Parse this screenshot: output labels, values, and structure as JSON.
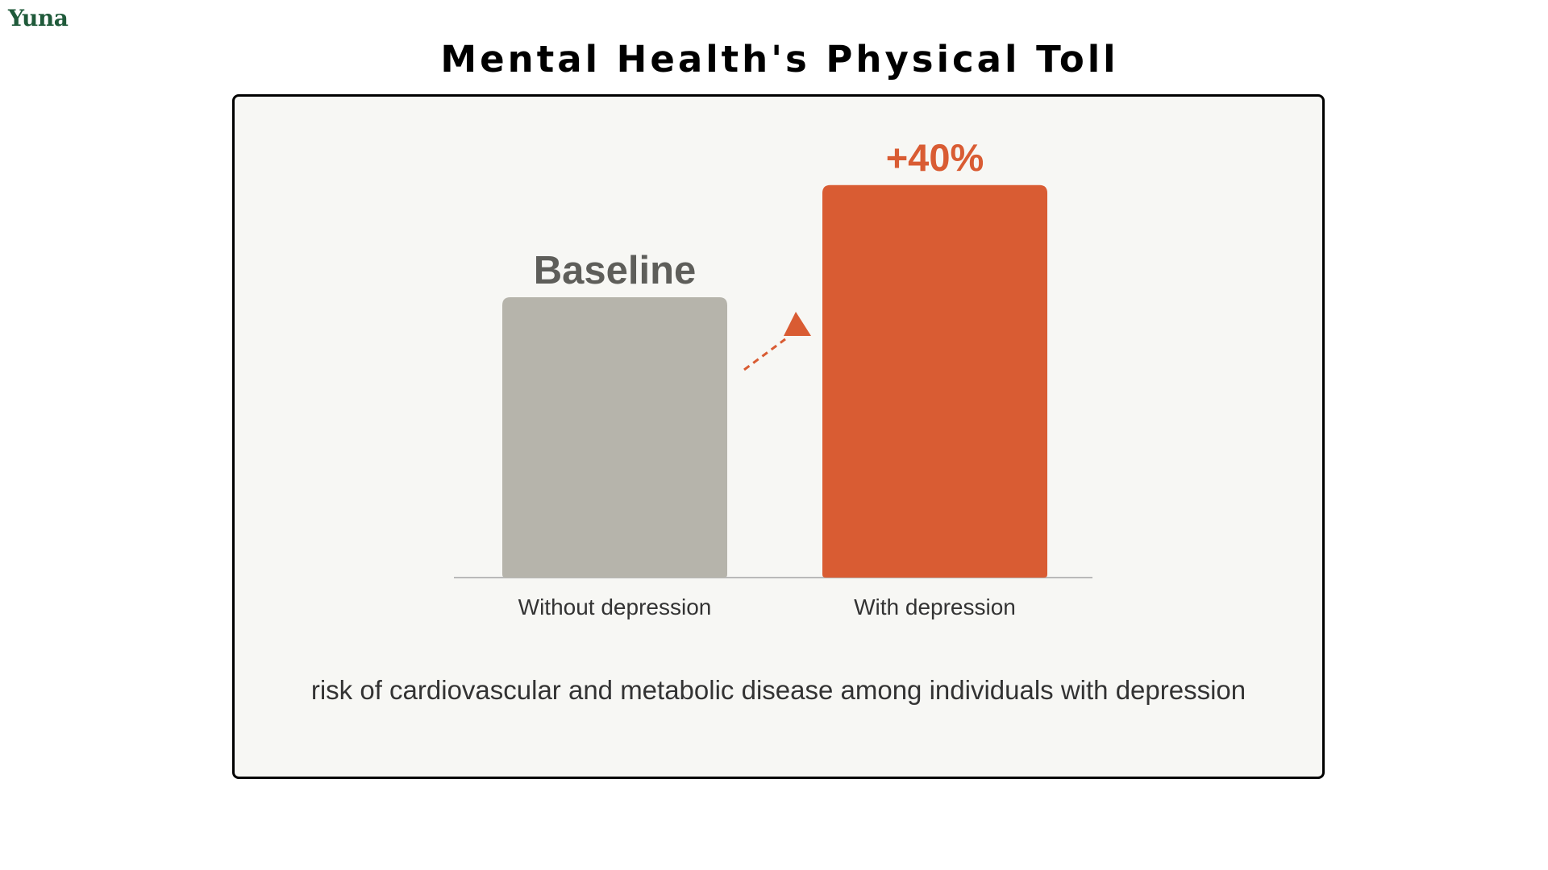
{
  "brand": {
    "logo_text": "Yuna"
  },
  "title": "Mental Health's Physical Toll",
  "chart_data": {
    "type": "bar",
    "categories": [
      "Without depression",
      "With depression"
    ],
    "values": [
      100,
      140
    ],
    "value_labels": [
      "Baseline",
      "+40%"
    ],
    "ylim": [
      0,
      150
    ],
    "grid": false,
    "legend": "none",
    "colors": [
      "#b6b4ab",
      "#d95c33"
    ],
    "label_colors": [
      "#5e5e5a",
      "#d95c33"
    ],
    "axis_color": "#b9b9b9",
    "annotation": "dashed arrow indicating increase from baseline",
    "caption": "risk of cardiovascular and metabolic disease among individuals with depression"
  },
  "colors": {
    "brand": "#1f5a3a",
    "card_background": "#f7f7f4",
    "card_border": "#000000",
    "caption": "#333333",
    "category_label": "#333333"
  }
}
